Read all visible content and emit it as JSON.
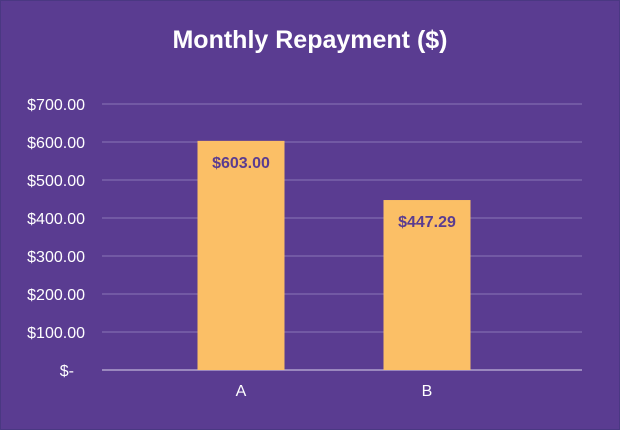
{
  "chart_data": {
    "type": "bar",
    "title": "Monthly Repayment ($)",
    "categories": [
      "A",
      "B"
    ],
    "values": [
      603.0,
      447.29
    ],
    "data_labels": [
      "$603.00",
      "$447.29"
    ],
    "ylim": [
      0,
      700
    ],
    "yticks": [
      0,
      100,
      200,
      300,
      400,
      500,
      600,
      700
    ],
    "ytick_labels": [
      "$-",
      "$100.00",
      "$200.00",
      "$300.00",
      "$400.00",
      "$500.00",
      "$600.00",
      "$700.00"
    ],
    "xlabel": "",
    "ylabel": "",
    "grid": true,
    "legend": "none",
    "colors": {
      "background": "#5a3c91",
      "bar": "#fbbf66",
      "data_label": "#5a3c91",
      "text": "#ffffff",
      "gridline": "#8b76b8"
    }
  }
}
